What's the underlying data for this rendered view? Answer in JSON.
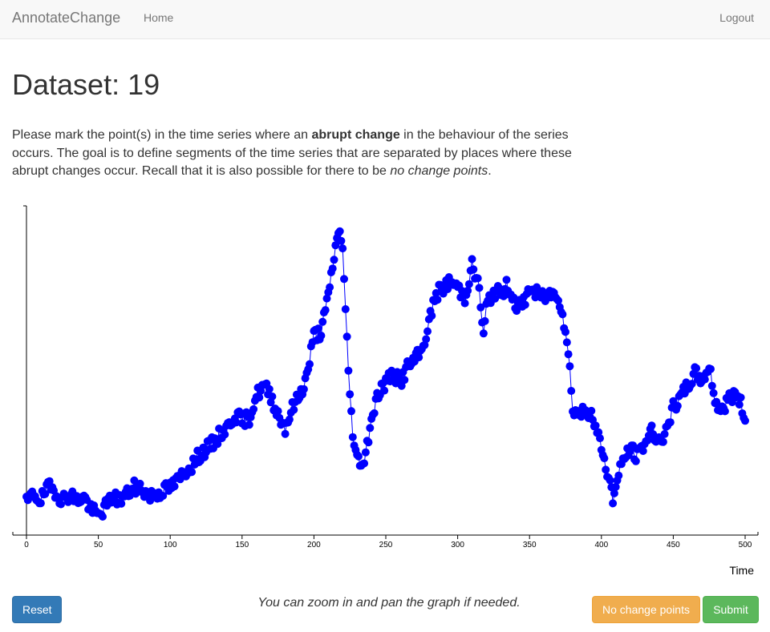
{
  "navbar": {
    "brand": "AnnotateChange",
    "home_label": "Home",
    "logout_label": "Logout"
  },
  "page": {
    "title": "Dataset: 19"
  },
  "instructions": {
    "part1": "Please mark the point(s) in the time series where an ",
    "bold": "abrupt change",
    "part2": " in the behaviour of the series occurs. The goal is to define segments of the time series that are separated by places where these abrupt changes occur. Recall that it is also possible for there to be ",
    "italic": "no change points",
    "part3": "."
  },
  "controls": {
    "reset_label": "Reset",
    "hint": "You can zoom in and pan the graph if needed.",
    "no_change_label": "No change points",
    "submit_label": "Submit"
  },
  "chart_data": {
    "type": "line",
    "xlabel": "Time",
    "ylabel": "",
    "xlim": [
      0,
      500
    ],
    "ylim": [
      0,
      100
    ],
    "x_ticks": [
      0,
      50,
      100,
      150,
      200,
      250,
      300,
      350,
      400,
      450,
      500
    ],
    "series_color": "#0000ff",
    "anchors": [
      [
        0,
        10
      ],
      [
        5,
        13
      ],
      [
        10,
        11
      ],
      [
        15,
        15
      ],
      [
        20,
        14
      ],
      [
        25,
        11
      ],
      [
        30,
        13
      ],
      [
        35,
        11
      ],
      [
        40,
        12
      ],
      [
        45,
        8
      ],
      [
        50,
        6
      ],
      [
        55,
        9
      ],
      [
        60,
        12
      ],
      [
        65,
        11
      ],
      [
        70,
        13
      ],
      [
        75,
        15
      ],
      [
        80,
        15
      ],
      [
        85,
        12
      ],
      [
        90,
        13
      ],
      [
        95,
        14
      ],
      [
        100,
        15
      ],
      [
        105,
        17
      ],
      [
        110,
        20
      ],
      [
        115,
        22
      ],
      [
        120,
        25
      ],
      [
        125,
        27
      ],
      [
        130,
        29
      ],
      [
        135,
        32
      ],
      [
        140,
        34
      ],
      [
        145,
        38
      ],
      [
        150,
        36
      ],
      [
        155,
        37
      ],
      [
        160,
        44
      ],
      [
        165,
        47
      ],
      [
        170,
        44
      ],
      [
        175,
        38
      ],
      [
        180,
        34
      ],
      [
        185,
        40
      ],
      [
        190,
        44
      ],
      [
        195,
        50
      ],
      [
        200,
        63
      ],
      [
        205,
        64
      ],
      [
        210,
        75
      ],
      [
        213,
        85
      ],
      [
        216,
        93
      ],
      [
        218,
        97
      ],
      [
        220,
        90
      ],
      [
        222,
        70
      ],
      [
        224,
        52
      ],
      [
        226,
        38
      ],
      [
        228,
        28
      ],
      [
        230,
        24
      ],
      [
        235,
        23
      ],
      [
        240,
        37
      ],
      [
        245,
        45
      ],
      [
        250,
        48
      ],
      [
        255,
        51
      ],
      [
        260,
        48
      ],
      [
        265,
        53
      ],
      [
        270,
        55
      ],
      [
        275,
        58
      ],
      [
        280,
        67
      ],
      [
        285,
        76
      ],
      [
        290,
        78
      ],
      [
        295,
        80
      ],
      [
        300,
        78
      ],
      [
        305,
        75
      ],
      [
        310,
        85
      ],
      [
        315,
        78
      ],
      [
        318,
        62
      ],
      [
        320,
        72
      ],
      [
        325,
        77
      ],
      [
        330,
        76
      ],
      [
        335,
        79
      ],
      [
        340,
        73
      ],
      [
        345,
        72
      ],
      [
        350,
        78
      ],
      [
        355,
        76
      ],
      [
        360,
        75
      ],
      [
        365,
        76
      ],
      [
        370,
        76
      ],
      [
        375,
        65
      ],
      [
        378,
        52
      ],
      [
        380,
        40
      ],
      [
        385,
        38
      ],
      [
        390,
        40
      ],
      [
        395,
        35
      ],
      [
        400,
        28
      ],
      [
        405,
        18
      ],
      [
        408,
        12
      ],
      [
        410,
        15
      ],
      [
        415,
        24
      ],
      [
        420,
        27
      ],
      [
        425,
        25
      ],
      [
        430,
        29
      ],
      [
        435,
        33
      ],
      [
        440,
        30
      ],
      [
        445,
        32
      ],
      [
        450,
        40
      ],
      [
        455,
        43
      ],
      [
        460,
        47
      ],
      [
        465,
        51
      ],
      [
        470,
        49
      ],
      [
        475,
        53
      ],
      [
        480,
        41
      ],
      [
        485,
        40
      ],
      [
        490,
        44
      ],
      [
        495,
        44
      ],
      [
        500,
        37
      ]
    ]
  }
}
